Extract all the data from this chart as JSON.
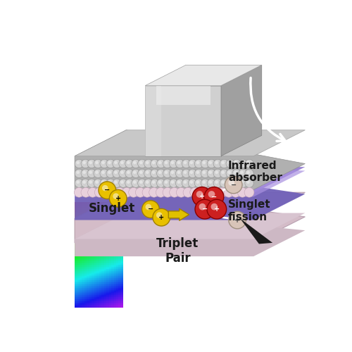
{
  "background_color": "#ffffff",
  "labels": {
    "infrared": "Infrared\nabsorber",
    "singlet_fission": "Singlet\nfission",
    "singlet": "Singlet",
    "triplet_pair": "Triplet\nPair"
  },
  "colors": {
    "purple_dark": "#6050a8",
    "purple_mid": "#7868c0",
    "purple_light": "#9888d8",
    "purple_top": "#a898e0",
    "pink_layer": "#c8b0c0",
    "pink_layer2": "#d8c8d0",
    "pink_bottom": "#e0d4dc",
    "gray_balls": "#c0c0c0",
    "gray_balls_dark": "#909090",
    "pink_balls": "#e8d0dc",
    "pink_balls_edge": "#c8a8b8",
    "cube_front": "#d8d8d8",
    "cube_right": "#a8a8a8",
    "cube_top": "#ececec",
    "yellow_ball": "#e8c000",
    "yellow_edge": "#a88800",
    "red_ball": "#cc2020",
    "red_edge": "#880000",
    "charge_ball": "#d8c4b8",
    "charge_edge": "#a89080"
  }
}
